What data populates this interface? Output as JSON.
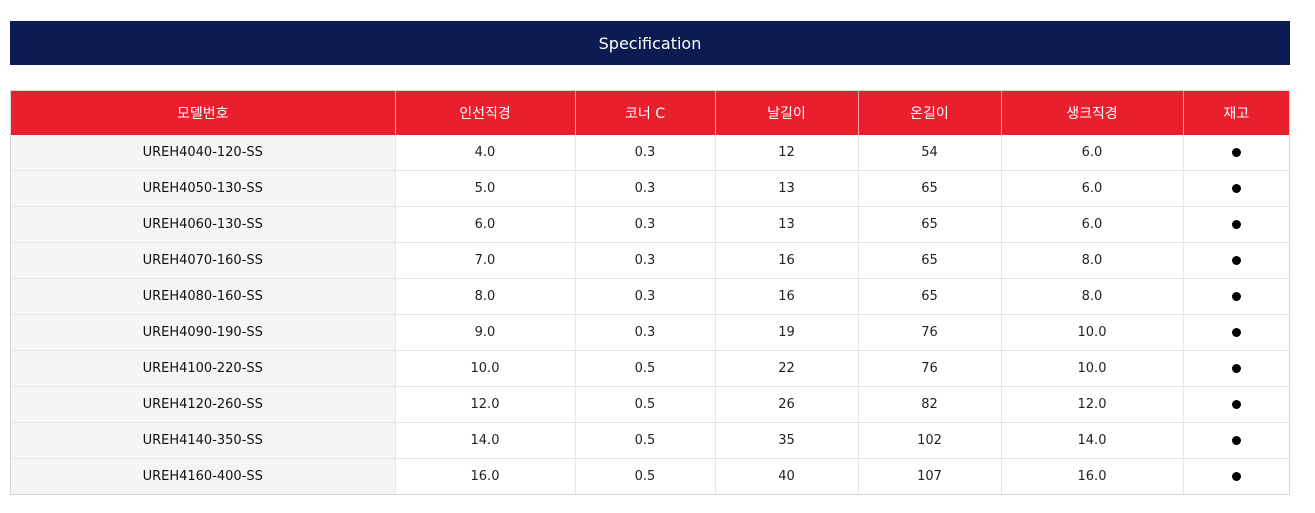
{
  "banner": {
    "title": "Specification"
  },
  "table": {
    "headers": [
      "모델번호",
      "인선직경",
      "코너 C",
      "날길이",
      "온길이",
      "생크직경",
      "재고"
    ],
    "stock_symbol": "●",
    "rows": [
      [
        "UREH4040-120-SS",
        "4.0",
        "0.3",
        "12",
        "54",
        "6.0"
      ],
      [
        "UREH4050-130-SS",
        "5.0",
        "0.3",
        "13",
        "65",
        "6.0"
      ],
      [
        "UREH4060-130-SS",
        "6.0",
        "0.3",
        "13",
        "65",
        "6.0"
      ],
      [
        "UREH4070-160-SS",
        "7.0",
        "0.3",
        "16",
        "65",
        "8.0"
      ],
      [
        "UREH4080-160-SS",
        "8.0",
        "0.3",
        "16",
        "65",
        "8.0"
      ],
      [
        "UREH4090-190-SS",
        "9.0",
        "0.3",
        "19",
        "76",
        "10.0"
      ],
      [
        "UREH4100-220-SS",
        "10.0",
        "0.5",
        "22",
        "76",
        "10.0"
      ],
      [
        "UREH4120-260-SS",
        "12.0",
        "0.5",
        "26",
        "82",
        "12.0"
      ],
      [
        "UREH4140-350-SS",
        "14.0",
        "0.5",
        "35",
        "102",
        "14.0"
      ],
      [
        "UREH4160-400-SS",
        "16.0",
        "0.5",
        "40",
        "107",
        "16.0"
      ]
    ]
  }
}
